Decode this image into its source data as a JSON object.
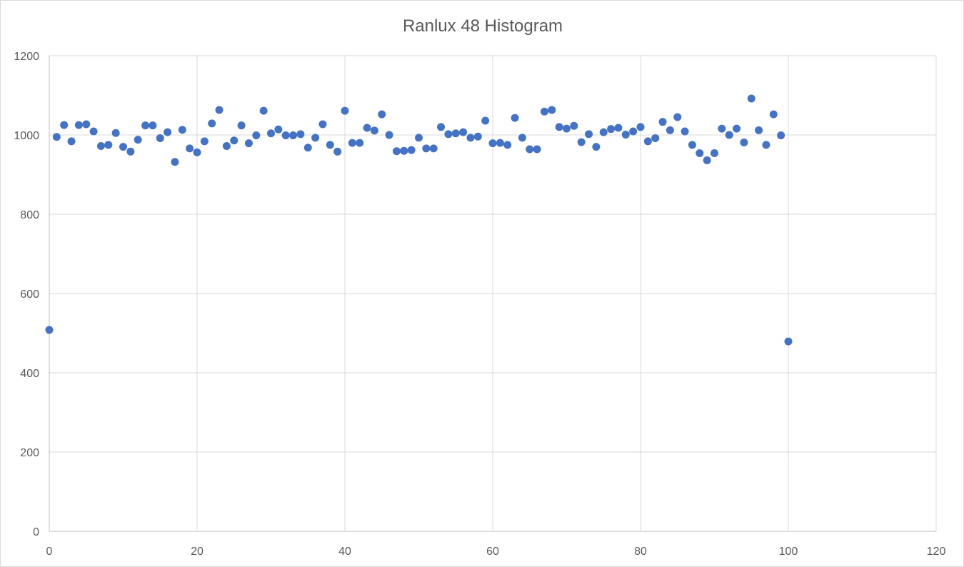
{
  "chart_data": {
    "type": "scatter",
    "title": "Ranlux 48 Histogram",
    "xlabel": "",
    "ylabel": "",
    "xlim": [
      0,
      120
    ],
    "ylim": [
      0,
      1200
    ],
    "x_ticks": [
      0,
      20,
      40,
      60,
      80,
      100,
      120
    ],
    "y_ticks": [
      0,
      200,
      400,
      600,
      800,
      1000,
      1200
    ],
    "grid": true,
    "legend": "none",
    "marker_color": "#4472c4",
    "series": [
      {
        "x": [
          0,
          1,
          2,
          3,
          4,
          5,
          6,
          7,
          8,
          9,
          10,
          11,
          12,
          13,
          14,
          15,
          16,
          17,
          18,
          19,
          20,
          21,
          22,
          23,
          24,
          25,
          26,
          27,
          28,
          29,
          30,
          31,
          32,
          33,
          34,
          35,
          36,
          37,
          38,
          39,
          40,
          41,
          42,
          43,
          44,
          45,
          46,
          47,
          48,
          49,
          50,
          51,
          52,
          53,
          54,
          55,
          56,
          57,
          58,
          59,
          60,
          61,
          62,
          63,
          64,
          65,
          66,
          67,
          68,
          69,
          70,
          71,
          72,
          73,
          74,
          75,
          76,
          77,
          78,
          79,
          80,
          81,
          82,
          83,
          84,
          85,
          86,
          87,
          88,
          89,
          90,
          91,
          92,
          93,
          94,
          95,
          96,
          97,
          98,
          99,
          100
        ],
        "y": [
          508,
          995,
          1025,
          984,
          1025,
          1027,
          1009,
          972,
          975,
          1005,
          970,
          958,
          988,
          1024,
          1024,
          992,
          1007,
          932,
          1013,
          966,
          956,
          984,
          1029,
          1063,
          972,
          986,
          1024,
          979,
          999,
          1061,
          1004,
          1014,
          999,
          999,
          1002,
          968,
          993,
          1027,
          975,
          958,
          1061,
          980,
          980,
          1018,
          1011,
          1052,
          1000,
          959,
          960,
          962,
          993,
          966,
          966,
          1020,
          1002,
          1004,
          1007,
          993,
          996,
          1036,
          979,
          980,
          975,
          1043,
          993,
          964,
          964,
          1059,
          1063,
          1020,
          1016,
          1023,
          982,
          1002,
          970,
          1007,
          1015,
          1018,
          1001,
          1009,
          1020,
          984,
          992,
          1033,
          1012,
          1045,
          1009,
          975,
          954,
          936,
          954,
          1016,
          1000,
          1016,
          981,
          1092,
          1012,
          975,
          1052,
          999,
          479
        ]
      }
    ]
  }
}
